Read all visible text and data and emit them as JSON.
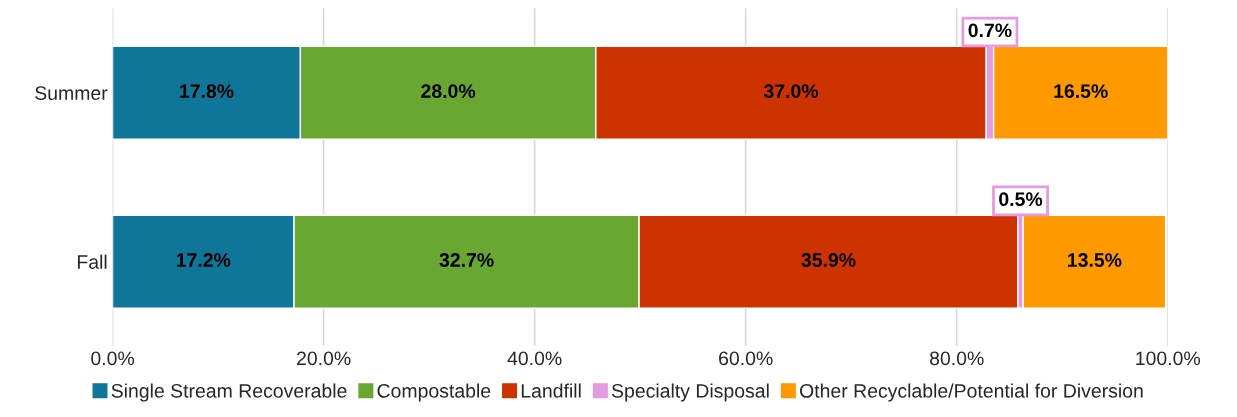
{
  "chart_data": {
    "type": "bar",
    "orientation": "horizontal",
    "stacked": true,
    "categories": [
      "Summer",
      "Fall"
    ],
    "series": [
      {
        "name": "Single Stream Recoverable",
        "color": "#0f7699",
        "values": [
          17.8,
          17.2
        ],
        "value_labels": [
          "17.8%",
          "17.2%"
        ]
      },
      {
        "name": "Compostable",
        "color": "#6aa632",
        "values": [
          28.0,
          32.7
        ],
        "value_labels": [
          "28.0%",
          "32.7%"
        ]
      },
      {
        "name": "Landfill",
        "color": "#cc3300",
        "values": [
          37.0,
          35.9
        ],
        "value_labels": [
          "37.0%",
          "35.9%"
        ]
      },
      {
        "name": "Specialty Disposal",
        "color": "#e59be0",
        "values": [
          0.7,
          0.5
        ],
        "value_labels": [
          "0.7%",
          "0.5%"
        ]
      },
      {
        "name": "Other Recyclable/Potential for Diversion",
        "color": "#ff9900",
        "values": [
          16.5,
          13.5
        ],
        "value_labels": [
          "16.5%",
          "13.5%"
        ]
      }
    ],
    "xlim": [
      0,
      100
    ],
    "xticks": [
      {
        "value": 0,
        "label": "0.0%"
      },
      {
        "value": 20,
        "label": "20.0%"
      },
      {
        "value": 40,
        "label": "40.0%"
      },
      {
        "value": 60,
        "label": "60.0%"
      },
      {
        "value": 80,
        "label": "80.0%"
      },
      {
        "value": 100,
        "label": "100.0%"
      }
    ],
    "grid": "x",
    "legend": "bottom"
  }
}
